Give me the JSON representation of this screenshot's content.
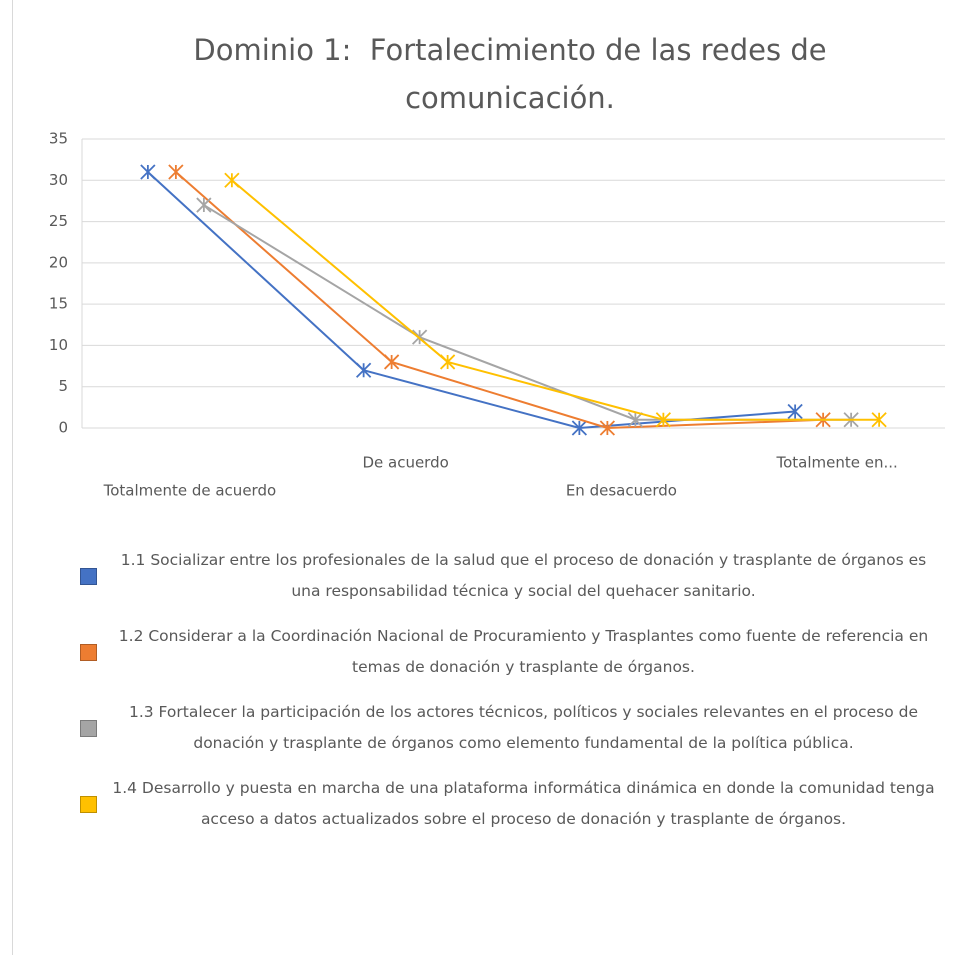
{
  "chart_data": {
    "type": "line",
    "title": "Dominio 1:  Fortalecimiento de las redes de comunicación.",
    "categories": [
      "Totalmente de acuerdo",
      "De acuerdo",
      "En desacuerdo",
      "Totalmente en..."
    ],
    "series": [
      {
        "name": "1.1 Socializar entre los profesionales de la salud que el proceso de donación y trasplante de órganos es una responsabilidad técnica y social del quehacer sanitario.",
        "color": "#4472c4",
        "values": [
          31,
          7,
          0,
          2
        ]
      },
      {
        "name": "1.2 Considerar a la Coordinación Nacional de Procuramiento y Trasplantes como fuente de referencia en temas de donación y trasplante de órganos.",
        "color": "#ed7d31",
        "values": [
          31,
          8,
          0,
          1
        ]
      },
      {
        "name": "1.3 Fortalecer la participación de los actores técnicos, políticos y sociales relevantes en el proceso de donación y trasplante de órganos como elemento fundamental de la política pública.",
        "color": "#a5a5a5",
        "values": [
          27,
          11,
          1,
          1
        ]
      },
      {
        "name": "1.4 Desarrollo y puesta en marcha de una plataforma informática dinámica en donde la comunidad tenga acceso a datos actualizados sobre el proceso de donación y trasplante de órganos.",
        "color": "#ffc000",
        "values": [
          30,
          8,
          1,
          1
        ]
      }
    ],
    "ylim": [
      0,
      35
    ],
    "yticks": [
      0,
      5,
      10,
      15,
      20,
      25,
      30,
      35
    ],
    "grid": true,
    "legend": "bottom"
  }
}
